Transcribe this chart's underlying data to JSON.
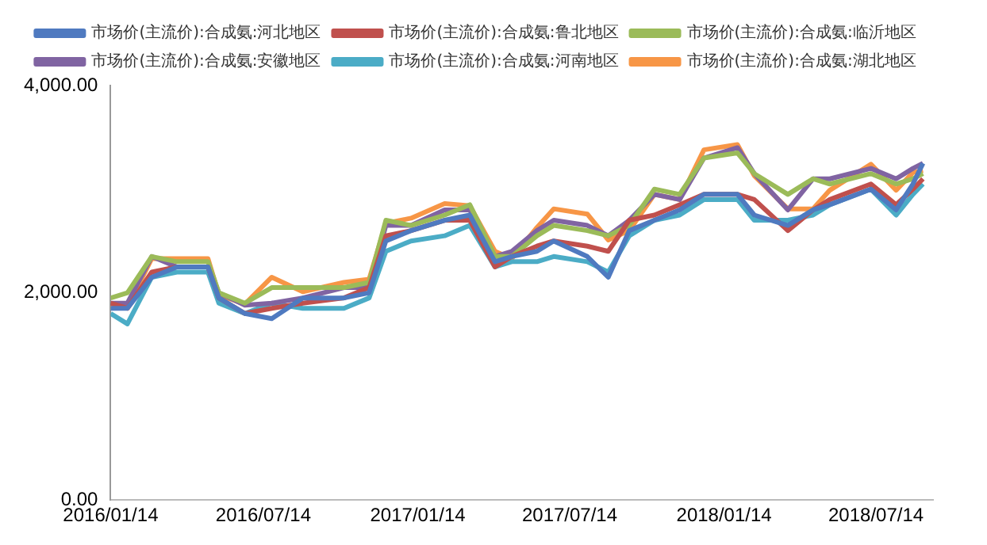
{
  "chart_data": {
    "type": "line",
    "x": [
      "2016-01-14",
      "2016-02-03",
      "2016-03-03",
      "2016-04-02",
      "2016-05-09",
      "2016-05-22",
      "2016-06-22",
      "2016-07-24",
      "2016-08-30",
      "2016-10-18",
      "2016-11-17",
      "2016-12-07",
      "2017-01-06",
      "2017-02-15",
      "2017-03-17",
      "2017-04-16",
      "2017-05-06",
      "2017-06-05",
      "2017-06-25",
      "2017-08-04",
      "2017-08-29",
      "2017-09-23",
      "2017-10-23",
      "2017-11-22",
      "2017-12-21",
      "2018-01-30",
      "2018-02-19",
      "2018-03-31",
      "2018-04-30",
      "2018-05-20",
      "2018-07-08",
      "2018-08-07",
      "2018-08-27",
      "2018-09-08"
    ],
    "series": [
      {
        "name": "市场价(主流价):合成氨:河北地区",
        "color": "#4f7ac0",
        "values": [
          1850,
          1850,
          2150,
          2250,
          2250,
          1950,
          1800,
          1750,
          1950,
          1950,
          2000,
          2500,
          2600,
          2700,
          2750,
          2300,
          2350,
          2400,
          2500,
          2350,
          2150,
          2600,
          2700,
          2800,
          2950,
          2950,
          2750,
          2650,
          2800,
          2850,
          3000,
          2800,
          3050,
          3250
        ]
      },
      {
        "name": "市场价(主流价):合成氨:鲁北地区",
        "color": "#c0504d",
        "values": [
          1900,
          1850,
          2200,
          2250,
          2250,
          1950,
          1800,
          1850,
          1900,
          1950,
          2050,
          2550,
          2600,
          2700,
          2700,
          2250,
          2350,
          2450,
          2500,
          2450,
          2400,
          2700,
          2750,
          2850,
          2950,
          2950,
          2900,
          2600,
          2800,
          2900,
          3050,
          2850,
          3000,
          3100
        ]
      },
      {
        "name": "市场价(主流价):合成氨:临沂地区",
        "color": "#9bbb59",
        "values": [
          1950,
          2000,
          2350,
          2300,
          2300,
          2000,
          1900,
          2050,
          2050,
          2050,
          2100,
          2700,
          2650,
          2750,
          2850,
          2350,
          2350,
          2550,
          2650,
          2600,
          2550,
          2650,
          3000,
          2950,
          3300,
          3350,
          3150,
          2950,
          3100,
          3050,
          3150,
          3050,
          3100,
          3150
        ]
      },
      {
        "name": "市场价(主流价):合成氨:安徽地区",
        "color": "#8064a2",
        "values": [
          1900,
          1900,
          2350,
          2250,
          2250,
          2000,
          1880,
          1900,
          1950,
          2050,
          2050,
          2650,
          2650,
          2800,
          2800,
          2350,
          2400,
          2600,
          2700,
          2650,
          2550,
          2700,
          2950,
          2900,
          3300,
          3400,
          3150,
          2800,
          3100,
          3100,
          3200,
          3100,
          3200,
          3250
        ]
      },
      {
        "name": "市场价(主流价):合成氨:河南地区",
        "color": "#4bacc6",
        "values": [
          1800,
          1700,
          2150,
          2200,
          2200,
          1900,
          1800,
          1900,
          1850,
          1850,
          1950,
          2400,
          2500,
          2550,
          2650,
          2250,
          2300,
          2300,
          2350,
          2300,
          2200,
          2550,
          2700,
          2750,
          2900,
          2900,
          2700,
          2700,
          2750,
          2850,
          3000,
          2750,
          2950,
          3050
        ]
      },
      {
        "name": "市场价(主流价):合成氨:湖北地区",
        "color": "#f79646",
        "values": [
          1890,
          1860,
          2330,
          2330,
          2330,
          1980,
          1890,
          2150,
          2010,
          2100,
          2130,
          2670,
          2720,
          2860,
          2840,
          2400,
          2330,
          2630,
          2810,
          2760,
          2510,
          2600,
          2950,
          2900,
          3380,
          3430,
          3130,
          2810,
          2810,
          2990,
          3240,
          2990,
          3160,
          3180
        ]
      }
    ],
    "xlim": [
      "2016-01-14",
      "2018-09-20"
    ],
    "xticks": [
      {
        "value": "2016-01-14",
        "label": "2016/01/14"
      },
      {
        "value": "2016-07-14",
        "label": "2016/07/14"
      },
      {
        "value": "2017-01-14",
        "label": "2017/01/14"
      },
      {
        "value": "2017-07-14",
        "label": "2017/07/14"
      },
      {
        "value": "2018-01-14",
        "label": "2018/01/14"
      },
      {
        "value": "2018-07-14",
        "label": "2018/07/14"
      }
    ],
    "ylim": [
      0,
      4000
    ],
    "yticks": [
      {
        "value": 0,
        "label": "0.00"
      },
      {
        "value": 2000,
        "label": "2,000.00"
      },
      {
        "value": 4000,
        "label": "4,000.00"
      }
    ],
    "grid": false,
    "legend": "top",
    "marker": "none",
    "line_style": "solid"
  }
}
